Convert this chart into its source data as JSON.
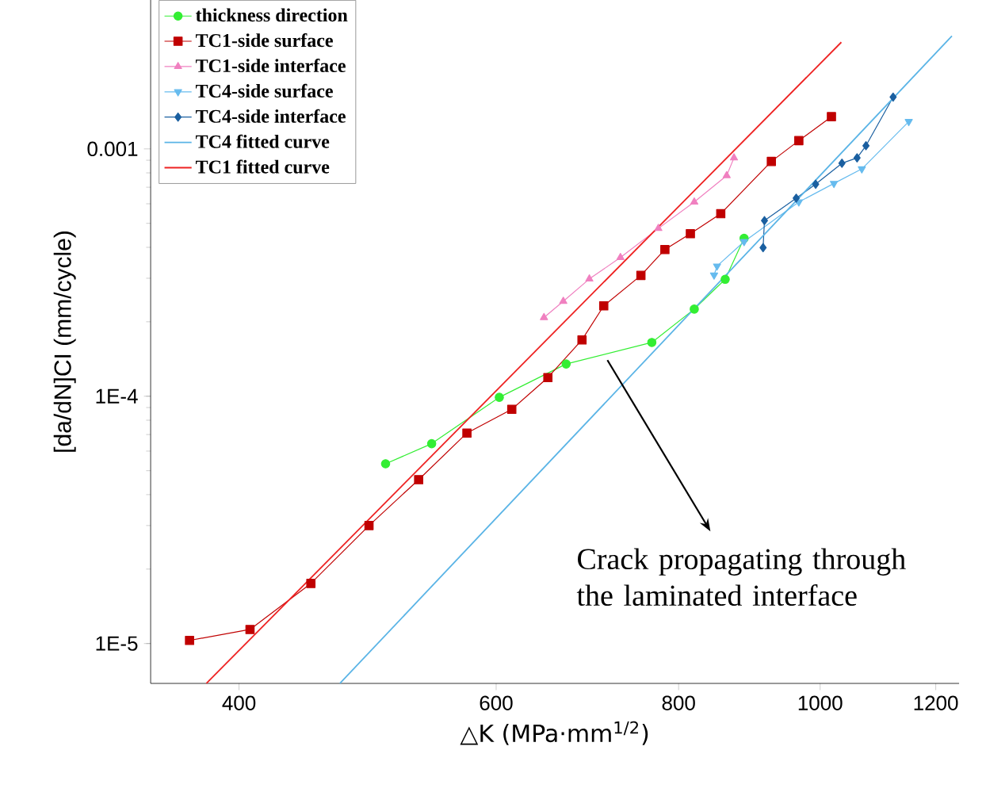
{
  "chart_data": {
    "type": "line",
    "xlabel": "△K (MPa·mm$^{1/2}$)",
    "ylabel": "[da/dN]CI (mm/cycle)",
    "log": "xy",
    "xlim": [
      348,
      1245
    ],
    "ylim": [
      6.9e-06,
      0.004
    ],
    "xticks": [
      400,
      600,
      800,
      1000,
      1200
    ],
    "yticks": [
      {
        "value": 1e-05,
        "label": "1E-5"
      },
      {
        "value": 0.0001,
        "label": "1E-4"
      },
      {
        "value": 0.001,
        "label": "0.001"
      }
    ],
    "legend": "top left",
    "grid": false,
    "series": [
      {
        "name": "thickness direction",
        "color": "#33ee33",
        "marker": "circle",
        "x": [
          504,
          542,
          603,
          670,
          767,
          820,
          861,
          887
        ],
        "values": [
          5.33e-05,
          6.43e-05,
          9.9e-05,
          0.000135,
          0.000165,
          0.000225,
          0.000297,
          0.000435
        ]
      },
      {
        "name": "TC1-side surface",
        "color": "#c00000",
        "marker": "square",
        "x": [
          370,
          407,
          448,
          491,
          531,
          573,
          615,
          651,
          687,
          711,
          754,
          783,
          815,
          855,
          926,
          967,
          1018
        ],
        "values": [
          1.03e-05,
          1.14e-05,
          1.75e-05,
          3e-05,
          4.6e-05,
          7.1e-05,
          8.85e-05,
          0.000119,
          0.000169,
          0.000232,
          0.000308,
          0.000392,
          0.000454,
          0.000547,
          0.00089,
          0.00108,
          0.00135
        ]
      },
      {
        "name": "TC1-side interface",
        "color": "#f080c0",
        "marker": "triangle",
        "x": [
          647,
          667,
          695,
          730,
          775,
          820,
          863,
          873
        ],
        "values": [
          0.000208,
          0.000242,
          0.000298,
          0.000364,
          0.000477,
          0.00061,
          0.00078,
          0.00092
        ]
      },
      {
        "name": "TC4-side surface",
        "color": "#66bbee",
        "marker": "triangle down",
        "x": [
          846,
          850,
          887,
          967,
          1022,
          1068,
          1150
        ],
        "values": [
          0.000309,
          0.000336,
          0.000422,
          0.00061,
          0.000725,
          0.00083,
          0.00129
        ]
      },
      {
        "name": "TC4-side interface",
        "color": "#1a5fa0",
        "marker": "diamond",
        "x": [
          914,
          916,
          963,
          993,
          1035,
          1060,
          1075,
          1122
        ],
        "values": [
          0.000399,
          0.000513,
          0.000632,
          0.00072,
          0.000875,
          0.00092,
          0.00103,
          0.00162
        ]
      },
      {
        "name": "TC4 fitted curve",
        "color": "#5ab4e6",
        "marker": "none",
        "x": [
          469,
          1231
        ],
        "values": [
          6.9e-06,
          0.00286
        ]
      },
      {
        "name": "TC1 fitted curve",
        "color": "#ee2222",
        "marker": "none",
        "x": [
          380,
          1034
        ],
        "values": [
          6.9e-06,
          0.0027
        ]
      }
    ],
    "annotations": [
      "Crack propagating through the laminated interface"
    ]
  }
}
